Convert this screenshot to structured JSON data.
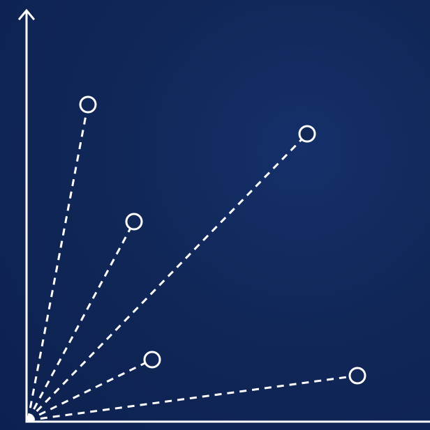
{
  "diagram": {
    "type": "vectors-from-origin",
    "colors": {
      "background": "#0f2553",
      "line": "#ffffff",
      "node_fill": "#102757"
    },
    "axes": {
      "x_arrow": false,
      "y_arrow": true
    },
    "vectors": [
      {
        "id": "v1",
        "style": "dashed",
        "endpoint": "open-circle"
      },
      {
        "id": "v2",
        "style": "dashed",
        "endpoint": "open-circle"
      },
      {
        "id": "v3",
        "style": "dashed",
        "endpoint": "open-circle"
      },
      {
        "id": "v4",
        "style": "dashed",
        "endpoint": "open-circle"
      },
      {
        "id": "v5",
        "style": "dashed",
        "endpoint": "open-circle"
      }
    ]
  }
}
